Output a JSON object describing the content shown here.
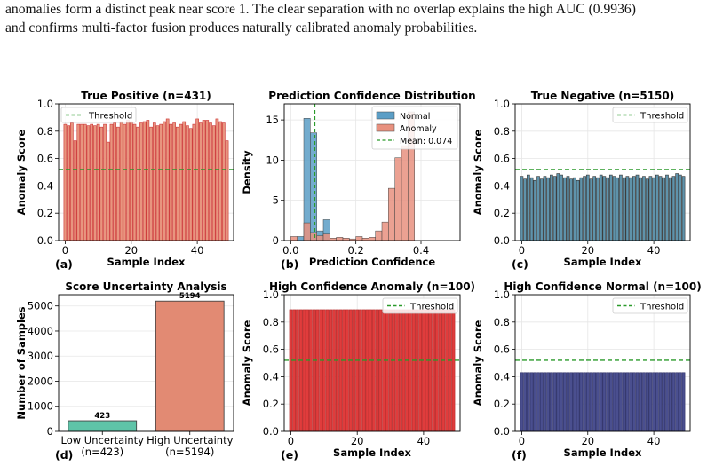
{
  "text": {
    "line1": "anomalies form a distinct peak near score 1. The clear separation with no overlap explains the high AUC (0.9936)",
    "line2": "and confirms multi-factor fusion produces naturally calibrated anomaly probabilities."
  },
  "chart_data": [
    {
      "id": "a",
      "type": "bar",
      "panel_label": "(a)",
      "title": "True Positive (n=431)",
      "xlabel": "Sample Index",
      "ylabel": "Anomaly Score",
      "xlim": [
        -2,
        51
      ],
      "ylim": [
        0,
        1.0
      ],
      "xticks": [
        0,
        20,
        40
      ],
      "yticks": [
        0.0,
        0.2,
        0.4,
        0.6,
        0.8,
        1.0
      ],
      "threshold": 0.52,
      "legend": "Threshold",
      "legend_loc": "top-left",
      "colors": {
        "bar": "#e8957f",
        "edge": "#cc3333",
        "threshold": "#2a9a2a"
      },
      "x": [
        0,
        1,
        2,
        3,
        4,
        5,
        6,
        7,
        8,
        9,
        10,
        11,
        12,
        13,
        14,
        15,
        16,
        17,
        18,
        19,
        20,
        21,
        22,
        23,
        24,
        25,
        26,
        27,
        28,
        29,
        30,
        31,
        32,
        33,
        34,
        35,
        36,
        37,
        38,
        39,
        40,
        41,
        42,
        43,
        44,
        45,
        46,
        47,
        48,
        49
      ],
      "values": [
        0.85,
        0.84,
        0.86,
        0.73,
        0.85,
        0.85,
        0.85,
        0.84,
        0.85,
        0.84,
        0.85,
        0.83,
        0.85,
        0.72,
        0.85,
        0.86,
        0.83,
        0.87,
        0.85,
        0.88,
        0.87,
        0.85,
        0.83,
        0.86,
        0.87,
        0.88,
        0.83,
        0.86,
        0.84,
        0.85,
        0.87,
        0.89,
        0.85,
        0.86,
        0.83,
        0.85,
        0.87,
        0.84,
        0.82,
        0.85,
        0.89,
        0.86,
        0.88,
        0.88,
        0.86,
        0.84,
        0.89,
        0.87,
        0.86,
        0.73
      ]
    },
    {
      "id": "b",
      "type": "histogram",
      "panel_label": "(b)",
      "title": "Prediction Confidence Distribution",
      "xlabel": "Prediction Confidence",
      "ylabel": "Density",
      "xlim": [
        -0.02,
        0.52
      ],
      "ylim": [
        0,
        17
      ],
      "xticks": [
        0.0,
        0.2,
        0.4
      ],
      "yticks": [
        0,
        5,
        10,
        15
      ],
      "mean_line": 0.074,
      "legend_loc": "top-right",
      "series": [
        {
          "name": "Normal",
          "color": "#5b9ec6",
          "bin_width": 0.02,
          "x": [
            0.02,
            0.04,
            0.06,
            0.08,
            0.1
          ],
          "values": [
            0.5,
            15.2,
            13.4,
            1.2,
            2.6
          ]
        },
        {
          "name": "Anomaly",
          "color": "#e8917f",
          "bin_width": 0.02,
          "x": [
            0.0,
            0.04,
            0.06,
            0.08,
            0.1,
            0.12,
            0.14,
            0.16,
            0.18,
            0.2,
            0.22,
            0.24,
            0.26,
            0.28,
            0.3,
            0.32,
            0.34,
            0.36
          ],
          "values": [
            0.5,
            2.2,
            1.0,
            0.6,
            0.8,
            0.3,
            0.4,
            0.3,
            0.2,
            0.5,
            0.3,
            0.4,
            1.2,
            2.3,
            6.5,
            10.3,
            11.8,
            16.0
          ]
        }
      ],
      "mean_label": "Mean: 0.074",
      "colors": {
        "mean": "#2a9a2a"
      }
    },
    {
      "id": "c",
      "type": "bar",
      "panel_label": "(c)",
      "title": "True Negative (n=5150)",
      "xlabel": "Sample Index",
      "ylabel": "Anomaly Score",
      "xlim": [
        -2,
        51
      ],
      "ylim": [
        0,
        1.0
      ],
      "xticks": [
        0,
        20,
        40
      ],
      "yticks": [
        0.0,
        0.2,
        0.4,
        0.6,
        0.8,
        1.0
      ],
      "threshold": 0.52,
      "legend": "Threshold",
      "legend_loc": "top-right",
      "colors": {
        "bar": "#5f93ab",
        "edge": "#333333",
        "threshold": "#2a9a2a"
      },
      "x": [
        0,
        1,
        2,
        3,
        4,
        5,
        6,
        7,
        8,
        9,
        10,
        11,
        12,
        13,
        14,
        15,
        16,
        17,
        18,
        19,
        20,
        21,
        22,
        23,
        24,
        25,
        26,
        27,
        28,
        29,
        30,
        31,
        32,
        33,
        34,
        35,
        36,
        37,
        38,
        39,
        40,
        41,
        42,
        43,
        44,
        45,
        46,
        47,
        48,
        49
      ],
      "values": [
        0.47,
        0.45,
        0.48,
        0.46,
        0.44,
        0.47,
        0.45,
        0.47,
        0.46,
        0.48,
        0.47,
        0.49,
        0.48,
        0.46,
        0.47,
        0.45,
        0.46,
        0.44,
        0.46,
        0.47,
        0.48,
        0.45,
        0.47,
        0.46,
        0.48,
        0.47,
        0.46,
        0.48,
        0.47,
        0.46,
        0.48,
        0.46,
        0.47,
        0.46,
        0.47,
        0.48,
        0.46,
        0.47,
        0.45,
        0.47,
        0.46,
        0.48,
        0.47,
        0.46,
        0.48,
        0.46,
        0.47,
        0.49,
        0.48,
        0.47
      ]
    },
    {
      "id": "d",
      "type": "bar",
      "panel_label": "(d)",
      "title": "Score Uncertainty Analysis",
      "ylabel": "Number of Samples",
      "ylim": [
        0,
        5450
      ],
      "yticks": [
        0,
        1000,
        2000,
        3000,
        4000,
        5000
      ],
      "categories": [
        "Low Uncertainty\n(n=423)",
        "High Uncertainty\n(n=5194)"
      ],
      "values": [
        423,
        5194
      ],
      "data_labels": [
        "423",
        "5194"
      ],
      "colors": {
        "bars": [
          "#5ec4a8",
          "#e28a73"
        ],
        "edge": "#444444"
      }
    },
    {
      "id": "e",
      "type": "bar",
      "panel_label": "(e)",
      "title": "High Confidence Anomaly (n=100)",
      "xlabel": "Sample Index",
      "ylabel": "Anomaly Score",
      "xlim": [
        -2,
        51
      ],
      "ylim": [
        0,
        1.0
      ],
      "xticks": [
        0,
        20,
        40
      ],
      "yticks": [
        0.0,
        0.2,
        0.4,
        0.6,
        0.8,
        1.0
      ],
      "threshold": 0.52,
      "legend": "Threshold",
      "legend_loc": "top-right",
      "colors": {
        "bar": "#e03c3c",
        "edge": "#b52a2a",
        "threshold": "#2a9a2a"
      },
      "x": [
        0,
        1,
        2,
        3,
        4,
        5,
        6,
        7,
        8,
        9,
        10,
        11,
        12,
        13,
        14,
        15,
        16,
        17,
        18,
        19,
        20,
        21,
        22,
        23,
        24,
        25,
        26,
        27,
        28,
        29,
        30,
        31,
        32,
        33,
        34,
        35,
        36,
        37,
        38,
        39,
        40,
        41,
        42,
        43,
        44,
        45,
        46,
        47,
        48,
        49
      ],
      "values": [
        0.89,
        0.89,
        0.89,
        0.89,
        0.89,
        0.89,
        0.89,
        0.89,
        0.89,
        0.89,
        0.89,
        0.89,
        0.89,
        0.89,
        0.89,
        0.89,
        0.89,
        0.89,
        0.89,
        0.89,
        0.89,
        0.89,
        0.89,
        0.89,
        0.89,
        0.89,
        0.89,
        0.89,
        0.89,
        0.89,
        0.89,
        0.89,
        0.89,
        0.89,
        0.89,
        0.89,
        0.89,
        0.89,
        0.89,
        0.89,
        0.89,
        0.89,
        0.89,
        0.89,
        0.89,
        0.89,
        0.89,
        0.89,
        0.89,
        0.89
      ]
    },
    {
      "id": "f",
      "type": "bar",
      "panel_label": "(f)",
      "title": "High Confidence Normal (n=100)",
      "xlabel": "Sample Index",
      "ylabel": "Anomaly Score",
      "xlim": [
        -2,
        51
      ],
      "ylim": [
        0,
        1.0
      ],
      "xticks": [
        0,
        20,
        40
      ],
      "yticks": [
        0.0,
        0.2,
        0.4,
        0.6,
        0.8,
        1.0
      ],
      "threshold": 0.52,
      "legend": "Threshold",
      "legend_loc": "top-right",
      "colors": {
        "bar": "#4a4f8f",
        "edge": "#2c2f66",
        "threshold": "#2a9a2a"
      },
      "x": [
        0,
        1,
        2,
        3,
        4,
        5,
        6,
        7,
        8,
        9,
        10,
        11,
        12,
        13,
        14,
        15,
        16,
        17,
        18,
        19,
        20,
        21,
        22,
        23,
        24,
        25,
        26,
        27,
        28,
        29,
        30,
        31,
        32,
        33,
        34,
        35,
        36,
        37,
        38,
        39,
        40,
        41,
        42,
        43,
        44,
        45,
        46,
        47,
        48,
        49
      ],
      "values": [
        0.43,
        0.43,
        0.43,
        0.43,
        0.43,
        0.43,
        0.43,
        0.43,
        0.43,
        0.43,
        0.43,
        0.43,
        0.43,
        0.43,
        0.43,
        0.43,
        0.43,
        0.43,
        0.43,
        0.43,
        0.43,
        0.43,
        0.43,
        0.43,
        0.43,
        0.43,
        0.43,
        0.43,
        0.43,
        0.43,
        0.43,
        0.43,
        0.43,
        0.43,
        0.43,
        0.43,
        0.43,
        0.43,
        0.43,
        0.43,
        0.43,
        0.43,
        0.43,
        0.43,
        0.43,
        0.43,
        0.43,
        0.43,
        0.43,
        0.43
      ]
    }
  ]
}
